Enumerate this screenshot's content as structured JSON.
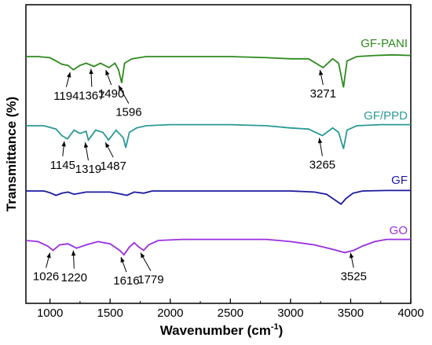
{
  "chart_data": {
    "type": "line",
    "xlabel": "Wavenumber (cm",
    "xlabel_sup": "-1",
    "xlabel_end": ")",
    "ylabel": "Transmittance (%)",
    "xlim": [
      800,
      4000
    ],
    "x_ticks": [
      1000,
      1500,
      2000,
      2500,
      3000,
      3500,
      4000
    ],
    "y_ticks_shown": false,
    "grid": false,
    "series": [
      {
        "name": "GF-PANI",
        "color": "#2e8b1e",
        "offset": 3,
        "points": [
          [
            800,
            0.0
          ],
          [
            900,
            0.0
          ],
          [
            1000,
            -0.05
          ],
          [
            1050,
            -0.2
          ],
          [
            1100,
            -0.35
          ],
          [
            1150,
            -0.4
          ],
          [
            1194,
            -0.6
          ],
          [
            1250,
            -0.4
          ],
          [
            1300,
            -0.3
          ],
          [
            1367,
            -0.45
          ],
          [
            1420,
            -0.3
          ],
          [
            1490,
            -0.5
          ],
          [
            1540,
            -0.3
          ],
          [
            1570,
            -0.6
          ],
          [
            1596,
            -1.2
          ],
          [
            1620,
            -0.3
          ],
          [
            1680,
            -0.1
          ],
          [
            1800,
            0.0
          ],
          [
            2000,
            0.0
          ],
          [
            2500,
            0.0
          ],
          [
            2800,
            -0.05
          ],
          [
            3000,
            -0.1
          ],
          [
            3150,
            -0.1
          ],
          [
            3271,
            -0.5
          ],
          [
            3350,
            -0.1
          ],
          [
            3400,
            -0.3
          ],
          [
            3440,
            -1.4
          ],
          [
            3470,
            -0.2
          ],
          [
            3550,
            0.0
          ],
          [
            3700,
            0.05
          ],
          [
            3850,
            0.08
          ],
          [
            4000,
            0.05
          ]
        ],
        "peaks": [
          1194,
          1367,
          1490,
          1596,
          3271
        ]
      },
      {
        "name": "GF/PPD",
        "color": "#2a9a96",
        "offset": 2,
        "points": [
          [
            800,
            0.0
          ],
          [
            950,
            0.0
          ],
          [
            1050,
            -0.15
          ],
          [
            1100,
            -0.45
          ],
          [
            1145,
            -0.6
          ],
          [
            1200,
            -0.2
          ],
          [
            1250,
            -0.35
          ],
          [
            1300,
            -0.25
          ],
          [
            1319,
            -0.65
          ],
          [
            1380,
            -0.2
          ],
          [
            1440,
            -0.3
          ],
          [
            1487,
            -0.65
          ],
          [
            1550,
            -0.2
          ],
          [
            1610,
            -0.55
          ],
          [
            1630,
            -1.0
          ],
          [
            1660,
            -0.3
          ],
          [
            1720,
            -0.1
          ],
          [
            1800,
            0.0
          ],
          [
            2000,
            0.05
          ],
          [
            2500,
            0.05
          ],
          [
            2800,
            0.0
          ],
          [
            3000,
            -0.1
          ],
          [
            3150,
            -0.15
          ],
          [
            3265,
            -0.45
          ],
          [
            3350,
            -0.1
          ],
          [
            3400,
            -0.3
          ],
          [
            3440,
            -1.05
          ],
          [
            3470,
            -0.2
          ],
          [
            3550,
            0.0
          ],
          [
            3750,
            0.05
          ],
          [
            4000,
            0.05
          ]
        ],
        "peaks": [
          1145,
          1319,
          1487,
          3265
        ]
      },
      {
        "name": "GF",
        "color": "#1a1aa0",
        "offset": 1,
        "points": [
          [
            800,
            0.0
          ],
          [
            950,
            0.0
          ],
          [
            1000,
            -0.08
          ],
          [
            1050,
            -0.2
          ],
          [
            1100,
            -0.1
          ],
          [
            1150,
            -0.05
          ],
          [
            1200,
            -0.15
          ],
          [
            1300,
            -0.05
          ],
          [
            1500,
            -0.05
          ],
          [
            1600,
            -0.15
          ],
          [
            1640,
            -0.2
          ],
          [
            1700,
            -0.05
          ],
          [
            1780,
            -0.1
          ],
          [
            1850,
            0.0
          ],
          [
            2000,
            0.0
          ],
          [
            2500,
            0.0
          ],
          [
            3000,
            0.0
          ],
          [
            3200,
            -0.05
          ],
          [
            3300,
            -0.15
          ],
          [
            3380,
            -0.45
          ],
          [
            3420,
            -0.6
          ],
          [
            3460,
            -0.35
          ],
          [
            3520,
            -0.1
          ],
          [
            3600,
            0.0
          ],
          [
            3800,
            0.02
          ],
          [
            4000,
            0.02
          ]
        ],
        "peaks": []
      },
      {
        "name": "GO",
        "color": "#9a2ee0",
        "offset": 0,
        "points": [
          [
            800,
            0.0
          ],
          [
            900,
            -0.05
          ],
          [
            980,
            -0.25
          ],
          [
            1026,
            -0.45
          ],
          [
            1080,
            -0.2
          ],
          [
            1150,
            -0.15
          ],
          [
            1220,
            -0.35
          ],
          [
            1300,
            -0.2
          ],
          [
            1400,
            -0.05
          ],
          [
            1500,
            -0.15
          ],
          [
            1580,
            -0.45
          ],
          [
            1616,
            -0.65
          ],
          [
            1660,
            -0.3
          ],
          [
            1700,
            -0.1
          ],
          [
            1740,
            -0.3
          ],
          [
            1779,
            -0.45
          ],
          [
            1820,
            -0.2
          ],
          [
            1900,
            0.0
          ],
          [
            2100,
            0.05
          ],
          [
            2500,
            0.05
          ],
          [
            2800,
            0.05
          ],
          [
            3000,
            -0.05
          ],
          [
            3200,
            -0.2
          ],
          [
            3350,
            -0.4
          ],
          [
            3450,
            -0.55
          ],
          [
            3525,
            -0.45
          ],
          [
            3600,
            -0.25
          ],
          [
            3700,
            -0.05
          ],
          [
            3800,
            0.05
          ],
          [
            4000,
            0.05
          ]
        ],
        "peaks": [
          1026,
          1220,
          1616,
          1779,
          3525
        ]
      }
    ]
  }
}
